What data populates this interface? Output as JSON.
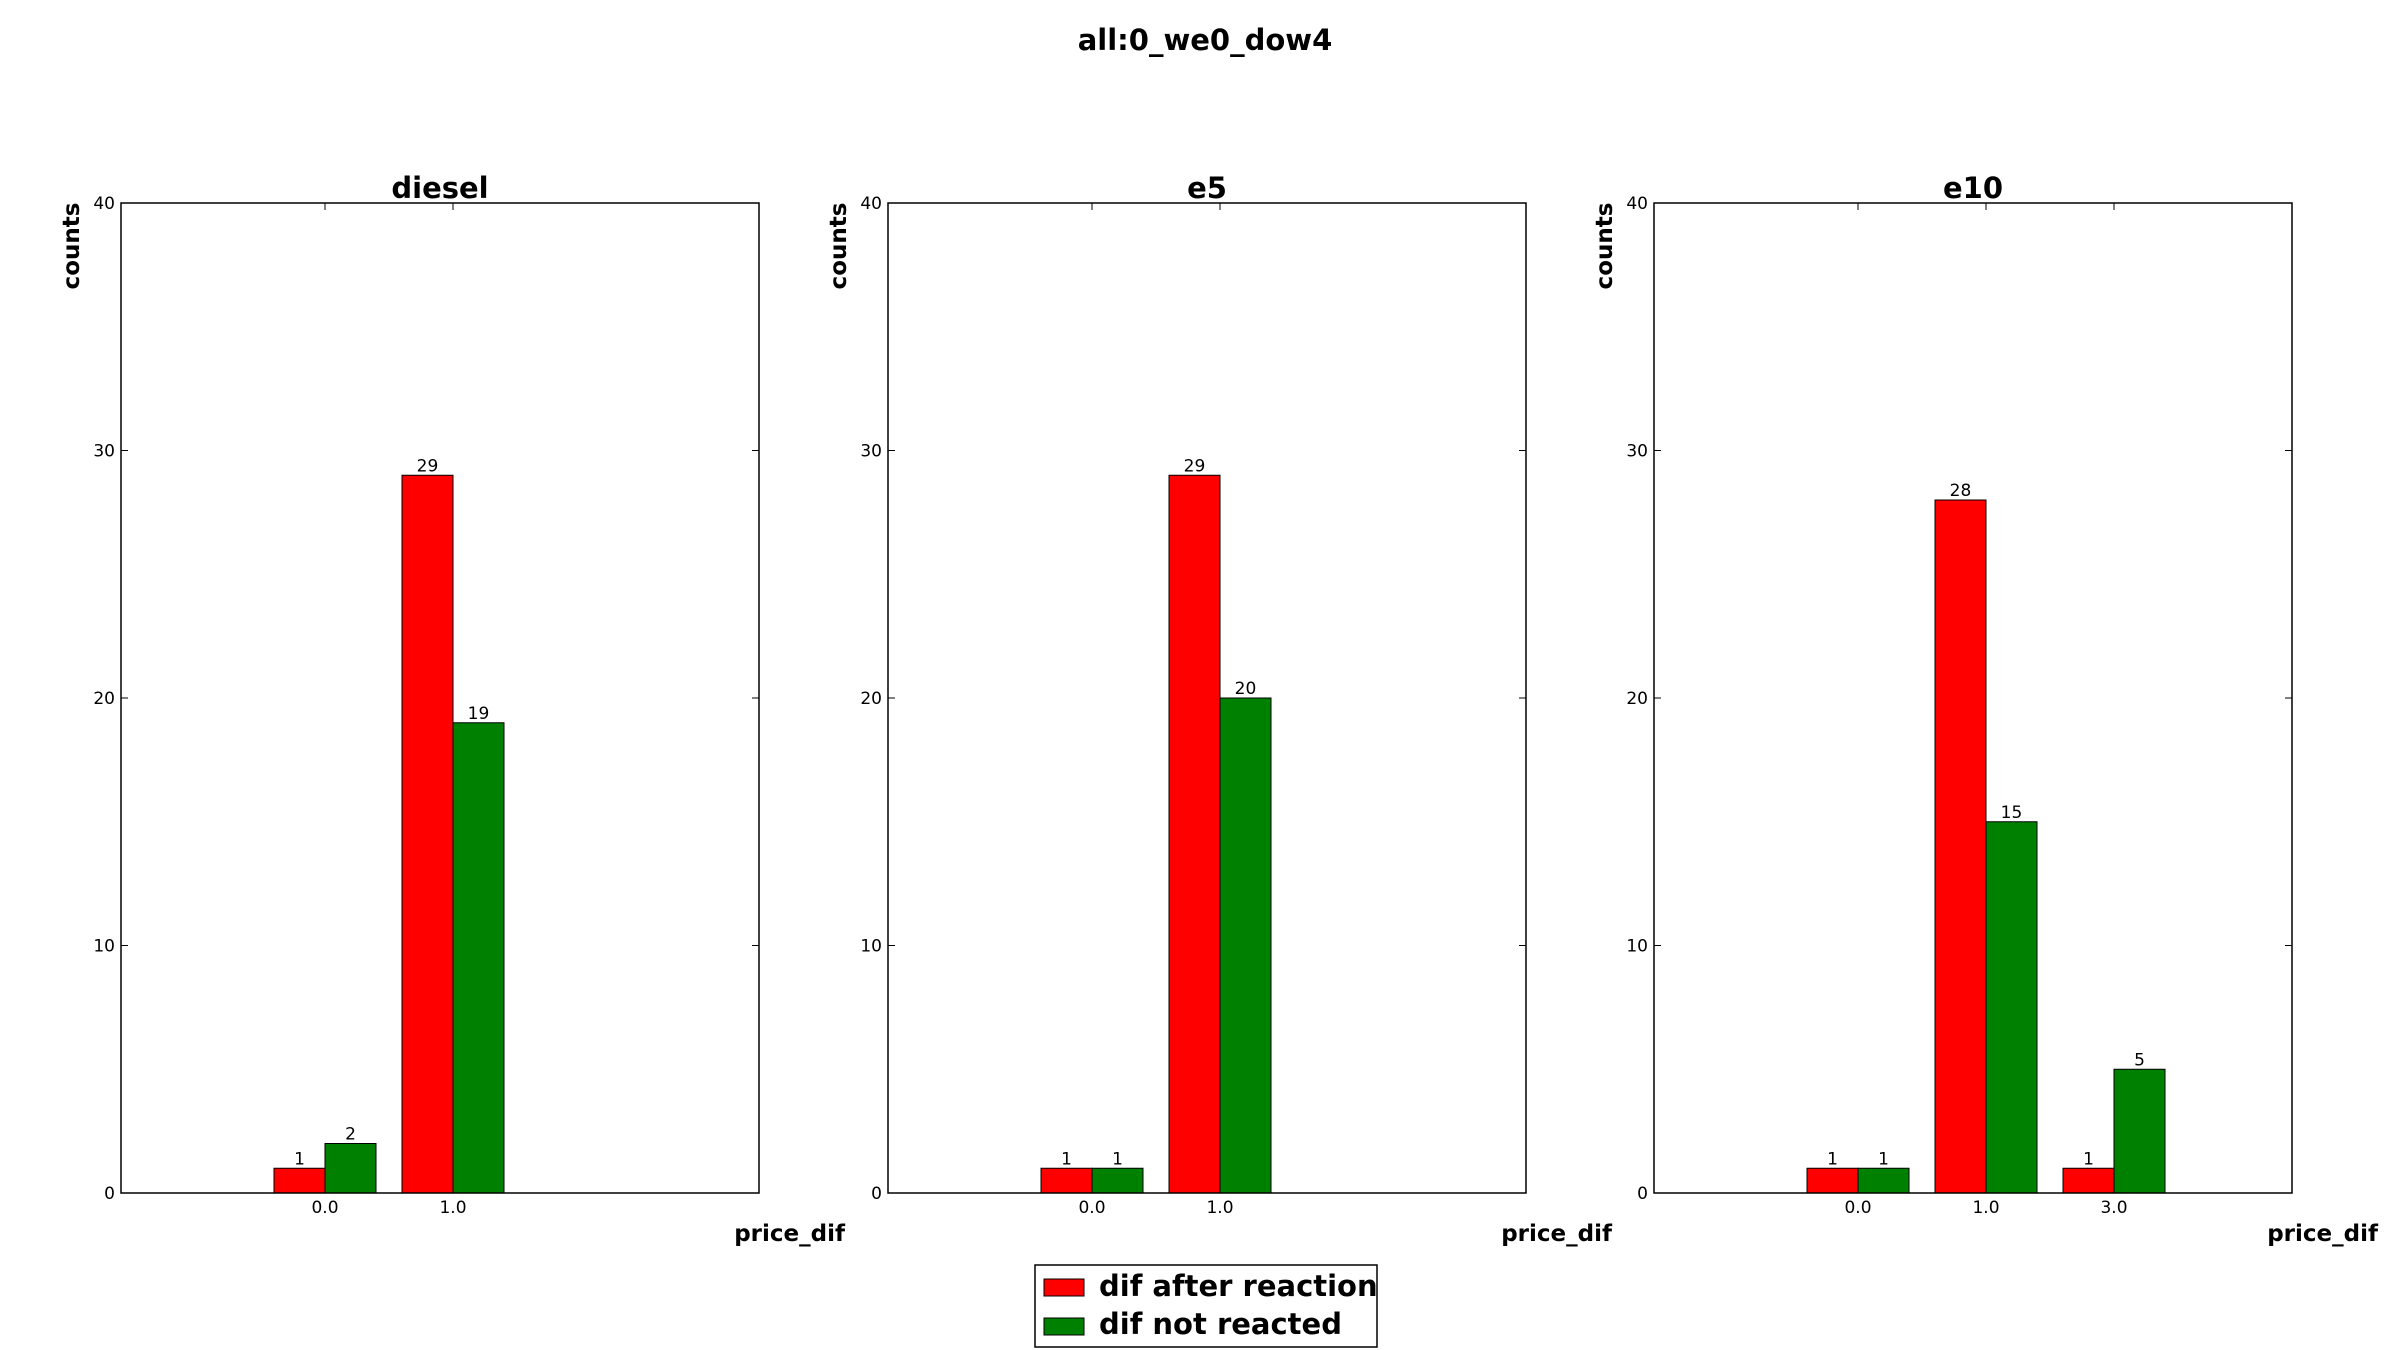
{
  "suptitle": "all:0_we0_dow4",
  "legend": {
    "entries": [
      {
        "label": "dif after reaction",
        "color": "#ff0000"
      },
      {
        "label": "dif not reacted",
        "color": "#008000"
      }
    ],
    "placement": "bottom-center"
  },
  "chart_data": [
    {
      "type": "bar",
      "title": "diesel",
      "xlabel": "price_dif",
      "ylabel": "counts",
      "categories": [
        "0.0",
        "1.0"
      ],
      "ylim": [
        0,
        40
      ],
      "yticks": [
        "0",
        "10",
        "20",
        "30",
        "40"
      ],
      "series": [
        {
          "name": "dif after reaction",
          "color": "#ff0000",
          "values": [
            1,
            29
          ]
        },
        {
          "name": "dif not reacted",
          "color": "#008000",
          "values": [
            2,
            19
          ]
        }
      ],
      "grid": false
    },
    {
      "type": "bar",
      "title": "e5",
      "xlabel": "price_dif",
      "ylabel": "counts",
      "categories": [
        "0.0",
        "1.0"
      ],
      "ylim": [
        0,
        40
      ],
      "yticks": [
        "0",
        "10",
        "20",
        "30",
        "40"
      ],
      "series": [
        {
          "name": "dif after reaction",
          "color": "#ff0000",
          "values": [
            1,
            29
          ]
        },
        {
          "name": "dif not reacted",
          "color": "#008000",
          "values": [
            1,
            20
          ]
        }
      ],
      "grid": false
    },
    {
      "type": "bar",
      "title": "e10",
      "xlabel": "price_dif",
      "ylabel": "counts",
      "categories": [
        "0.0",
        "1.0",
        "3.0"
      ],
      "ylim": [
        0,
        40
      ],
      "yticks": [
        "0",
        "10",
        "20",
        "30",
        "40"
      ],
      "series": [
        {
          "name": "dif after reaction",
          "color": "#ff0000",
          "values": [
            1,
            28,
            1
          ]
        },
        {
          "name": "dif not reacted",
          "color": "#008000",
          "values": [
            1,
            15,
            5
          ]
        }
      ],
      "grid": false
    }
  ]
}
